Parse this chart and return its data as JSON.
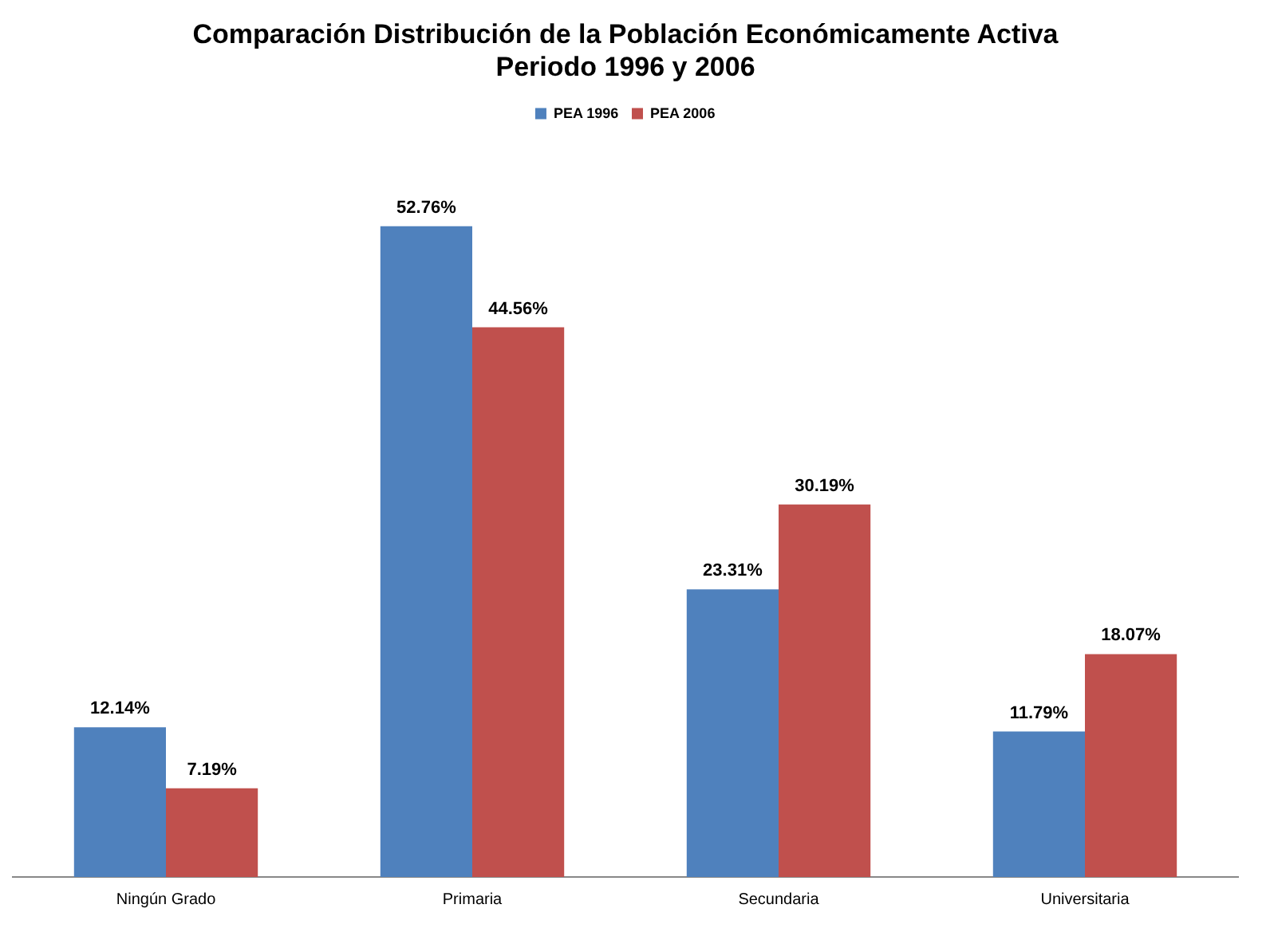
{
  "chart_data": {
    "type": "bar",
    "title": "Comparación Distribución de la Población Económicamente Activa\nPeriodo 1996 y 2006",
    "categories": [
      "Ningún Grado",
      "Primaria",
      "Secundaria",
      "Universitaria"
    ],
    "series": [
      {
        "name": "PEA 1996",
        "color": "#4f81bd",
        "values": [
          12.14,
          52.76,
          23.31,
          11.79
        ],
        "value_labels": [
          "12.14%",
          "52.76%",
          "23.31%",
          "11.79%"
        ]
      },
      {
        "name": "PEA 2006",
        "color": "#c0504d",
        "values": [
          7.19,
          44.56,
          30.19,
          18.07
        ],
        "value_labels": [
          "7.19%",
          "44.56%",
          "30.19%",
          "18.07%"
        ]
      }
    ],
    "tick_labels": "x",
    "grid": false,
    "legend": "top"
  }
}
